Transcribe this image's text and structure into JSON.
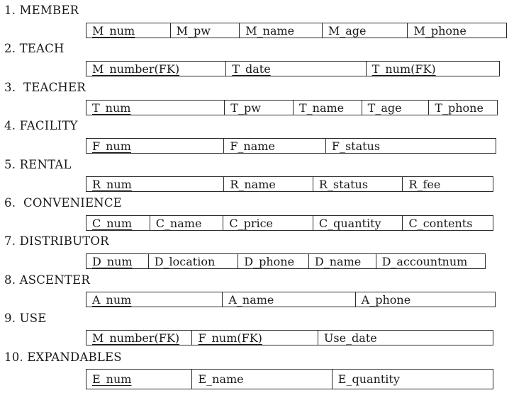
{
  "entities": [
    {
      "title": "1. MEMBER",
      "fields": [
        "M_num",
        "M_pw",
        "M_name",
        "M_age",
        "M_phone"
      ]
    },
    {
      "title": "2. TEACH",
      "fields": [
        "M_number(FK)",
        "T_date",
        "T_num(FK)"
      ]
    },
    {
      "title": "3.  TEACHER",
      "fields": [
        "T_num",
        "T_pw",
        "T_name",
        "T_age",
        "T_phone"
      ]
    },
    {
      "title": "4. FACILITY",
      "fields": [
        "F_num",
        "F_name",
        "F_status"
      ]
    },
    {
      "title": "5. RENTAL",
      "fields": [
        "R_num",
        "R_name",
        "R_status",
        "R_fee"
      ]
    },
    {
      "title": "6.  CONVENIENCE",
      "fields": [
        "C_num",
        "C_name",
        "C_price",
        "C_quantity",
        "C_contents"
      ]
    },
    {
      "title": "7. DISTRIBUTOR",
      "fields": [
        "D_num",
        "D_location",
        "D_phone",
        "D_name",
        "D_accountnum"
      ]
    },
    {
      "title": "8. ASCENTER",
      "fields": [
        "A_num",
        "A_name",
        "A_phone"
      ]
    },
    {
      "title": "9. USE",
      "fields": [
        "M_number(FK)",
        "F_num(FK)",
        "Use_date"
      ]
    },
    {
      "title": "10. EXPANDABLES",
      "fields": [
        "E_num",
        "E_name",
        "E_quantity"
      ]
    }
  ]
}
